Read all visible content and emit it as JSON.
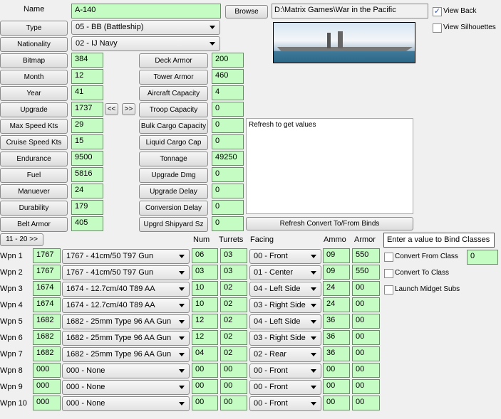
{
  "name": {
    "label": "Name",
    "value": "A-140"
  },
  "browse_label": "Browse",
  "path": "D:\\Matrix Games\\War in the Pacific",
  "view_back": {
    "label": "View Back",
    "checked": true
  },
  "view_silhouettes": {
    "label": "View Silhouettes",
    "checked": false
  },
  "type": {
    "label": "Type",
    "value": "05 - BB (Battleship)"
  },
  "nationality": {
    "label": "Nationality",
    "value": "02 - IJ Navy"
  },
  "left_fields": [
    {
      "label": "Bitmap",
      "value": "384"
    },
    {
      "label": "Month",
      "value": "12"
    },
    {
      "label": "Year",
      "value": "41"
    },
    {
      "label": "Upgrade",
      "value": "1737"
    },
    {
      "label": "Max Speed Kts",
      "value": "29"
    },
    {
      "label": "Cruise Speed Kts",
      "value": "15"
    },
    {
      "label": "Endurance",
      "value": "9500"
    },
    {
      "label": "Fuel",
      "value": "5816"
    },
    {
      "label": "Manuever",
      "value": "24"
    },
    {
      "label": "Durability",
      "value": "179"
    },
    {
      "label": "Belt Armor",
      "value": "405"
    }
  ],
  "right_fields": [
    {
      "label": "Deck Armor",
      "value": "200"
    },
    {
      "label": "Tower Armor",
      "value": "460"
    },
    {
      "label": "Aircraft Capacity",
      "value": "4"
    },
    {
      "label": "Troop Capacity",
      "value": "0"
    },
    {
      "label": "Bulk Cargo Capacity",
      "value": "0"
    },
    {
      "label": "Liquid Cargo Cap",
      "value": "0"
    },
    {
      "label": "Tonnage",
      "value": "49250"
    },
    {
      "label": "Upgrade Dmg",
      "value": "0"
    },
    {
      "label": "Upgrade Delay",
      "value": "0"
    },
    {
      "label": "Conversion Delay",
      "value": "0"
    },
    {
      "label": "Upgrd Shipyard Sz",
      "value": "0"
    }
  ],
  "prev_label": "<<",
  "next_label": ">>",
  "info_text": "Refresh to get values",
  "refresh_label": "Refresh Convert To/From Binds",
  "page_label": "11 - 20 >>",
  "headers": {
    "num": "Num",
    "turrets": "Turrets",
    "facing": "Facing",
    "ammo": "Ammo",
    "armor": "Armor"
  },
  "bind_hint": "Enter a value to Bind Classes",
  "convert_from": {
    "label": "Convert From Class",
    "value": "0"
  },
  "convert_to": {
    "label": "Convert To Class"
  },
  "midget": {
    "label": "Launch Midget Subs"
  },
  "weapons": [
    {
      "label": "Wpn 1",
      "code": "1767",
      "name": "1767 - 41cm/50 T97 Gun",
      "num": "06",
      "turrets": "03",
      "facing": "00 - Front",
      "ammo": "09",
      "armor": "550"
    },
    {
      "label": "Wpn 2",
      "code": "1767",
      "name": "1767 - 41cm/50 T97 Gun",
      "num": "03",
      "turrets": "03",
      "facing": "01 - Center",
      "ammo": "09",
      "armor": "550"
    },
    {
      "label": "Wpn 3",
      "code": "1674",
      "name": "1674 - 12.7cm/40 T89 AA",
      "num": "10",
      "turrets": "02",
      "facing": "04 - Left Side",
      "ammo": "24",
      "armor": "00"
    },
    {
      "label": "Wpn 4",
      "code": "1674",
      "name": "1674 - 12.7cm/40 T89 AA",
      "num": "10",
      "turrets": "02",
      "facing": "03 - Right Side",
      "ammo": "24",
      "armor": "00"
    },
    {
      "label": "Wpn 5",
      "code": "1682",
      "name": "1682 - 25mm Type 96 AA Gun",
      "num": "12",
      "turrets": "02",
      "facing": "04 - Left Side",
      "ammo": "36",
      "armor": "00"
    },
    {
      "label": "Wpn 6",
      "code": "1682",
      "name": "1682 - 25mm Type 96 AA Gun",
      "num": "12",
      "turrets": "02",
      "facing": "03 - Right Side",
      "ammo": "36",
      "armor": "00"
    },
    {
      "label": "Wpn 7",
      "code": "1682",
      "name": "1682 - 25mm Type 96 AA Gun",
      "num": "04",
      "turrets": "02",
      "facing": "02 - Rear",
      "ammo": "36",
      "armor": "00"
    },
    {
      "label": "Wpn 8",
      "code": "000",
      "name": "000 - None",
      "num": "00",
      "turrets": "00",
      "facing": "00 - Front",
      "ammo": "00",
      "armor": "00"
    },
    {
      "label": "Wpn 9",
      "code": "000",
      "name": "000 - None",
      "num": "00",
      "turrets": "00",
      "facing": "00 - Front",
      "ammo": "00",
      "armor": "00"
    },
    {
      "label": "Wpn 10",
      "code": "000",
      "name": "000 - None",
      "num": "00",
      "turrets": "00",
      "facing": "00 - Front",
      "ammo": "00",
      "armor": "00"
    }
  ]
}
